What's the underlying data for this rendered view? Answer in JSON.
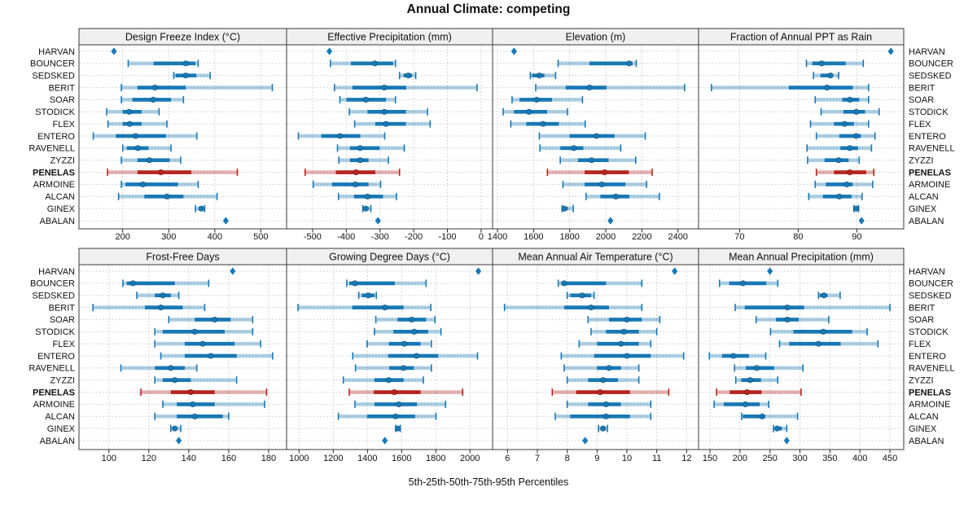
{
  "title": "Annual Climate: competing",
  "caption": "5th-25th-50th-75th-95th Percentiles",
  "sites": [
    "HARVAN",
    "BOUNCER",
    "SEDSKED",
    "BERIT",
    "SOAR",
    "STODICK",
    "FLEX",
    "ENTERO",
    "RAVENELL",
    "ZYZZI",
    "PENELAS",
    "ARMOINE",
    "ALCAN",
    "GINEX",
    "ABALAN"
  ],
  "colors": {
    "series": "#1878b4",
    "highlight": "#b5251f",
    "header_bg": "#f0f0f0",
    "grid": "#c9c9c9",
    "border": "#3a3a3a",
    "text": "#111111"
  },
  "chart_data": {
    "type": "dot-interval trellis (median dot, 25th-75th thick band, 5th-95th whisker with caps)",
    "percentiles": [
      "5th",
      "25th",
      "50th",
      "75th",
      "95th"
    ],
    "categories": [
      "HARVAN",
      "BOUNCER",
      "SEDSKED",
      "BERIT",
      "SOAR",
      "STODICK",
      "FLEX",
      "ENTERO",
      "RAVENELL",
      "ZYZZI",
      "PENELAS",
      "ARMOINE",
      "ALCAN",
      "GINEX",
      "ABALAN"
    ],
    "highlight": "PENELAS",
    "grid": "dotted",
    "legend": "none",
    "panels": [
      {
        "title": "Design Freeze Index (°C)",
        "xlim": [
          105,
          556
        ],
        "ticks": [
          200,
          300,
          400,
          500
        ],
        "values": {
          "HARVAN": [
            181,
            181,
            181,
            181,
            181
          ],
          "BOUNCER": [
            212,
            267,
            337,
            358,
            364
          ],
          "SEDSKED": [
            311,
            315,
            337,
            360,
            390
          ],
          "BERIT": [
            197,
            232,
            270,
            337,
            525
          ],
          "SOAR": [
            197,
            221,
            266,
            305,
            332
          ],
          "STODICK": [
            165,
            200,
            214,
            241,
            279
          ],
          "FLEX": [
            168,
            200,
            215,
            241,
            296
          ],
          "ENTERO": [
            136,
            185,
            228,
            294,
            361
          ],
          "RAVENELL": [
            200,
            209,
            233,
            256,
            305
          ],
          "ZYZZI": [
            197,
            232,
            258,
            302,
            326
          ],
          "PENELAS": [
            167,
            232,
            283,
            349,
            449
          ],
          "ARMOINE": [
            197,
            206,
            244,
            320,
            364
          ],
          "ALCAN": [
            191,
            247,
            296,
            332,
            405
          ],
          "GINEX": [
            358,
            365,
            371,
            375,
            378
          ],
          "ABALAN": [
            424,
            424,
            424,
            424,
            424
          ]
        }
      },
      {
        "title": "Effective Precipitation (mm)",
        "xlim": [
          -577,
          34
        ],
        "ticks": [
          -500,
          -400,
          -300,
          -200,
          -100,
          0
        ],
        "values": {
          "HARVAN": [
            -450,
            -450,
            -450,
            -450,
            -450
          ],
          "BOUNCER": [
            -447,
            -386,
            -315,
            -261,
            -254
          ],
          "SEDSKED": [
            -242,
            -230,
            -216,
            -205,
            -194
          ],
          "BERIT": [
            -435,
            -382,
            -287,
            -222,
            -12
          ],
          "SOAR": [
            -419,
            -399,
            -342,
            -282,
            -254
          ],
          "STODICK": [
            -391,
            -337,
            -287,
            -223,
            -159
          ],
          "FLEX": [
            -375,
            -314,
            -282,
            -223,
            -151
          ],
          "ENTERO": [
            -542,
            -474,
            -419,
            -358,
            -286
          ],
          "RAVENELL": [
            -426,
            -389,
            -359,
            -301,
            -228
          ],
          "ZYZZI": [
            -422,
            -389,
            -359,
            -334,
            -275
          ],
          "PENELAS": [
            -522,
            -431,
            -371,
            -314,
            -242
          ],
          "ARMOINE": [
            -498,
            -442,
            -373,
            -334,
            -298
          ],
          "ALCAN": [
            -423,
            -377,
            -337,
            -291,
            -251
          ],
          "GINEX": [
            -351,
            -346,
            -342,
            -334,
            -327
          ],
          "ABALAN": [
            -306,
            -306,
            -306,
            -306,
            -306
          ]
        }
      },
      {
        "title": "Elevation (m)",
        "xlim": [
          1373,
          2514
        ],
        "ticks": [
          1400,
          1600,
          1800,
          2000,
          2200,
          2400
        ],
        "values": {
          "HARVAN": [
            1492,
            1492,
            1492,
            1492,
            1492
          ],
          "BOUNCER": [
            1736,
            1910,
            2130,
            2148,
            2169
          ],
          "SEDSKED": [
            1582,
            1591,
            1632,
            1660,
            1722
          ],
          "BERIT": [
            1612,
            1778,
            1910,
            2004,
            2437
          ],
          "SOAR": [
            1481,
            1522,
            1617,
            1702,
            1871
          ],
          "STODICK": [
            1432,
            1492,
            1575,
            1675,
            1788
          ],
          "FLEX": [
            1474,
            1559,
            1653,
            1740,
            1886
          ],
          "ENTERO": [
            1632,
            1800,
            1948,
            2049,
            2219
          ],
          "RAVENELL": [
            1635,
            1748,
            1823,
            1876,
            2083
          ],
          "ZYZZI": [
            1748,
            1846,
            1921,
            2016,
            2166
          ],
          "PENELAS": [
            1677,
            1883,
            1993,
            2128,
            2257
          ],
          "ARMOINE": [
            1763,
            1883,
            1978,
            2109,
            2226
          ],
          "ALCAN": [
            1891,
            1970,
            2056,
            2131,
            2297
          ],
          "GINEX": [
            1758,
            1763,
            1770,
            1790,
            1820
          ],
          "ABALAN": [
            2026,
            2026,
            2026,
            2026,
            2026
          ]
        }
      },
      {
        "title": "Fraction of Annual PPT as Rain",
        "xlim": [
          63,
          98
        ],
        "ticks": [
          70,
          80,
          90
        ],
        "values": {
          "HARVAN": [
            95.8,
            95.8,
            95.8,
            95.8,
            95.8
          ],
          "BOUNCER": [
            81.4,
            82.4,
            84.0,
            88.1,
            91.1
          ],
          "SEDSKED": [
            82.6,
            83.8,
            85.5,
            85.9,
            86.9
          ],
          "BERIT": [
            65.2,
            78.4,
            84.9,
            89.3,
            92.0
          ],
          "SOAR": [
            82.9,
            87.5,
            88.8,
            90.4,
            92.0
          ],
          "STODICK": [
            83.9,
            87.7,
            89.9,
            91.4,
            93.8
          ],
          "FLEX": [
            82.1,
            86.1,
            87.9,
            89.5,
            92.0
          ],
          "ENTERO": [
            83.1,
            87.0,
            89.9,
            90.7,
            93.1
          ],
          "RAVENELL": [
            81.5,
            87.2,
            88.8,
            90.2,
            92.5
          ],
          "ZYZZI": [
            81.6,
            84.5,
            86.9,
            88.6,
            90.4
          ],
          "PENELAS": [
            83.1,
            86.1,
            88.8,
            91.6,
            92.9
          ],
          "ARMOINE": [
            82.9,
            84.7,
            88.3,
            89.3,
            92.7
          ],
          "ALCAN": [
            81.8,
            84.2,
            87.0,
            89.1,
            90.9
          ],
          "GINEX": [
            89.5,
            89.7,
            89.9,
            90.1,
            90.3
          ],
          "ABALAN": [
            90.8,
            90.8,
            90.8,
            90.8,
            90.8
          ]
        }
      },
      {
        "title": "Frost-Free Days",
        "xlim": [
          85,
          189
        ],
        "ticks": [
          100,
          120,
          140,
          160,
          180
        ],
        "values": {
          "HARVAN": [
            162,
            162,
            162,
            162,
            162
          ],
          "BOUNCER": [
            107,
            109,
            112,
            133,
            150
          ],
          "SEDSKED": [
            114,
            123,
            127,
            131,
            135
          ],
          "BERIT": [
            92,
            118,
            126,
            137,
            148
          ],
          "SOAR": [
            130,
            143,
            153,
            161,
            172
          ],
          "STODICK": [
            123,
            127,
            143,
            158,
            172
          ],
          "FLEX": [
            123,
            138,
            147,
            163,
            176
          ],
          "ENTERO": [
            126,
            138,
            151,
            164,
            182
          ],
          "RAVENELL": [
            106,
            123,
            131,
            138,
            144
          ],
          "ZYZZI": [
            123,
            127,
            133,
            141,
            164
          ],
          "PENELAS": [
            116,
            131,
            141,
            153,
            179
          ],
          "ARMOINE": [
            127,
            134,
            142,
            153,
            178
          ],
          "ALCAN": [
            123,
            134,
            143,
            157,
            160
          ],
          "GINEX": [
            131,
            132,
            133,
            134,
            136
          ],
          "ABALAN": [
            135,
            135,
            135,
            135,
            135
          ]
        }
      },
      {
        "title": "Growing Degree Days (°C)",
        "xlim": [
          927,
          2132
        ],
        "ticks": [
          1000,
          1200,
          1400,
          1600,
          1800,
          2000
        ],
        "values": {
          "HARVAN": [
            2049,
            2049,
            2049,
            2049,
            2049
          ],
          "BOUNCER": [
            1279,
            1294,
            1327,
            1560,
            1743
          ],
          "SEDSKED": [
            1349,
            1367,
            1405,
            1441,
            1452
          ],
          "BERIT": [
            994,
            1311,
            1502,
            1611,
            1771
          ],
          "SOAR": [
            1449,
            1576,
            1659,
            1743,
            1795
          ],
          "STODICK": [
            1441,
            1552,
            1674,
            1755,
            1830
          ],
          "FLEX": [
            1398,
            1525,
            1616,
            1711,
            1774
          ],
          "ENTERO": [
            1314,
            1521,
            1687,
            1814,
            2044
          ],
          "RAVENELL": [
            1330,
            1528,
            1611,
            1671,
            1774
          ],
          "ZYZZI": [
            1259,
            1441,
            1524,
            1611,
            1727
          ],
          "PENELAS": [
            1294,
            1437,
            1557,
            1711,
            1957
          ],
          "ARMOINE": [
            1327,
            1441,
            1584,
            1690,
            1857
          ],
          "ALCAN": [
            1230,
            1398,
            1565,
            1679,
            1801
          ],
          "GINEX": [
            1565,
            1571,
            1577,
            1583,
            1592
          ],
          "ABALAN": [
            1502,
            1502,
            1502,
            1502,
            1502
          ]
        }
      },
      {
        "title": "Mean Annual Air Temperature (°C)",
        "xlim": [
          5.5,
          12.4
        ],
        "ticks": [
          6,
          7,
          8,
          9,
          10,
          11,
          12
        ],
        "values": {
          "HARVAN": [
            11.6,
            11.6,
            11.6,
            11.6,
            11.6
          ],
          "BOUNCER": [
            7.7,
            7.8,
            7.9,
            9.3,
            10.5
          ],
          "SEDSKED": [
            8.0,
            8.1,
            8.5,
            8.8,
            8.9
          ],
          "BERIT": [
            5.9,
            7.9,
            8.8,
            9.4,
            10.5
          ],
          "SOAR": [
            8.7,
            9.4,
            10.0,
            10.5,
            11.1
          ],
          "STODICK": [
            8.8,
            9.3,
            9.9,
            10.4,
            11.0
          ],
          "FLEX": [
            8.4,
            9.0,
            9.8,
            10.4,
            10.8
          ],
          "ENTERO": [
            7.8,
            8.9,
            10.0,
            10.8,
            11.9
          ],
          "RAVENELL": [
            7.9,
            9.0,
            9.4,
            9.8,
            10.4
          ],
          "ZYZZI": [
            8.0,
            8.7,
            9.2,
            9.7,
            10.4
          ],
          "PENELAS": [
            7.5,
            8.3,
            9.1,
            10.1,
            11.4
          ],
          "ARMOINE": [
            8.0,
            8.7,
            9.3,
            9.8,
            10.8
          ],
          "ALCAN": [
            7.6,
            8.1,
            9.3,
            10.1,
            10.8
          ],
          "GINEX": [
            9.05,
            9.12,
            9.2,
            9.28,
            9.35
          ],
          "ABALAN": [
            8.6,
            8.6,
            8.6,
            8.6,
            8.6
          ]
        }
      },
      {
        "title": "Mean Annual Precipitation (mm)",
        "xlim": [
          131,
          473
        ],
        "ticks": [
          150,
          200,
          250,
          300,
          350,
          400,
          450
        ],
        "values": {
          "HARVAN": [
            250,
            250,
            250,
            250,
            250
          ],
          "BOUNCER": [
            166,
            182,
            205,
            244,
            263
          ],
          "SEDSKED": [
            331,
            333,
            340,
            346,
            367
          ],
          "BERIT": [
            192,
            208,
            279,
            307,
            450
          ],
          "SOAR": [
            227,
            260,
            279,
            298,
            348
          ],
          "STODICK": [
            251,
            289,
            339,
            387,
            412
          ],
          "FLEX": [
            266,
            282,
            331,
            368,
            430
          ],
          "ENTERO": [
            149,
            170,
            189,
            215,
            243
          ],
          "RAVENELL": [
            191,
            210,
            228,
            257,
            305
          ],
          "ZYZZI": [
            193,
            202,
            217,
            235,
            263
          ],
          "PENELAS": [
            161,
            183,
            212,
            236,
            302
          ],
          "ARMOINE": [
            157,
            173,
            209,
            233,
            248
          ],
          "ALCAN": [
            203,
            205,
            237,
            242,
            296
          ],
          "GINEX": [
            256,
            259,
            262,
            270,
            278
          ],
          "ABALAN": [
            278,
            278,
            278,
            278,
            278
          ]
        }
      }
    ]
  }
}
